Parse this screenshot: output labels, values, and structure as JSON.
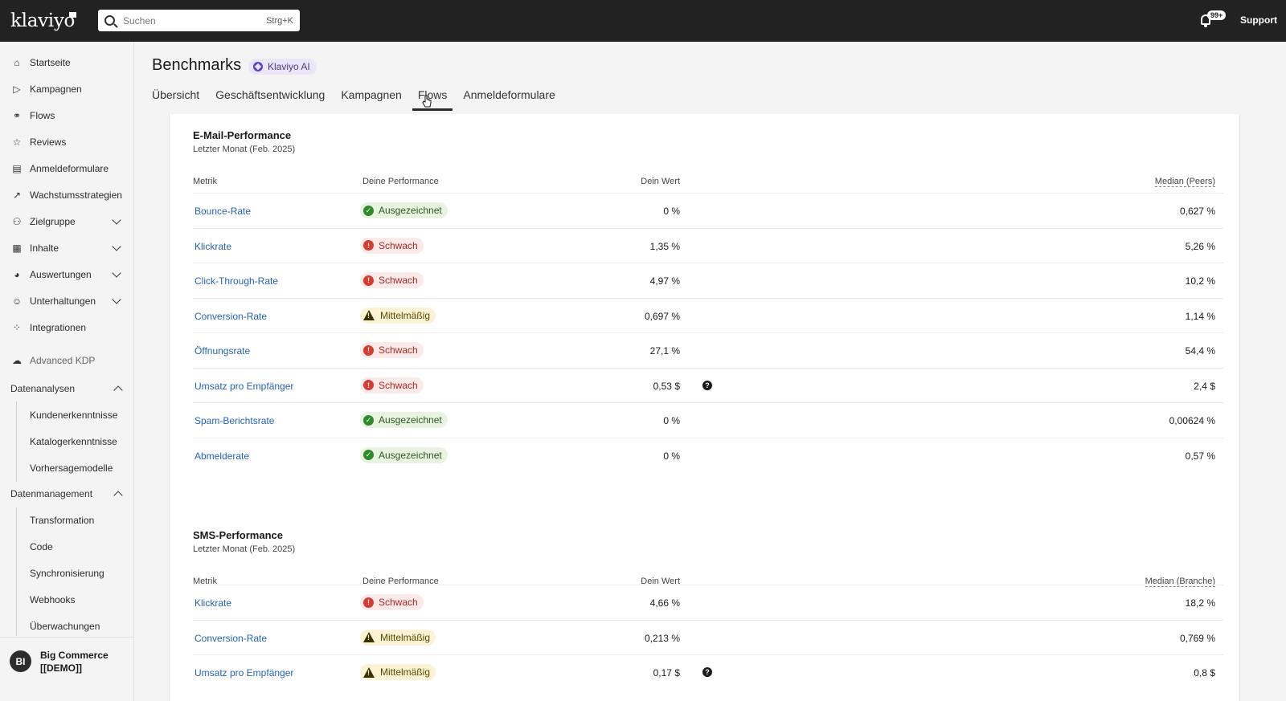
{
  "topbar": {
    "logo": "klaviyo",
    "search_placeholder": "Suchen",
    "search_shortcut": "Strg+K",
    "notifications_count": "99+",
    "support_label": "Support"
  },
  "sidebar": {
    "items": [
      {
        "label": "Startseite",
        "icon": "home-icon"
      },
      {
        "label": "Kampagnen",
        "icon": "send-icon"
      },
      {
        "label": "Flows",
        "icon": "flow-icon"
      },
      {
        "label": "Reviews",
        "icon": "star-icon"
      },
      {
        "label": "Anmeldeformulare",
        "icon": "form-icon"
      },
      {
        "label": "Wachstumsstrategien",
        "icon": "trend-icon"
      },
      {
        "label": "Zielgruppe",
        "icon": "people-icon"
      },
      {
        "label": "Inhalte",
        "icon": "content-icon"
      },
      {
        "label": "Auswertungen",
        "icon": "pie-chart-icon"
      },
      {
        "label": "Unterhaltungen",
        "icon": "chat-icon"
      },
      {
        "label": "Integrationen",
        "icon": "grid-icon"
      },
      {
        "label": "Advanced KDP",
        "icon": "cloud-icon"
      }
    ],
    "datenanalysen": {
      "label": "Datenanalysen",
      "items": [
        "Kundenerkenntnisse",
        "Katalogerkenntnisse",
        "Vorhersagemodelle"
      ]
    },
    "datenmanagement": {
      "label": "Datenmanagement",
      "items": [
        "Transformation",
        "Code",
        "Synchronisierung",
        "Webhooks",
        "Überwachungen"
      ]
    },
    "account": {
      "initials": "BI",
      "name": "Big Commerce [[DEMO]]"
    }
  },
  "header": {
    "title": "Benchmarks",
    "ai_badge": "Klaviyo AI",
    "tabs": [
      "Übersicht",
      "Geschäftsentwicklung",
      "Kampagnen",
      "Flows",
      "Anmeldeformulare"
    ],
    "active_tab": "Flows"
  },
  "email": {
    "title": "E-Mail-Performance",
    "subtitle": "Letzter Monat (Feb. 2025)",
    "columns": {
      "metric": "Metrik",
      "performance": "Deine Performance",
      "value": "Dein Wert",
      "median": "Median (Peers)"
    },
    "rows": [
      {
        "metric": "Bounce-Rate",
        "status": "Ausgezeichnet",
        "level": "good",
        "value": "0 %",
        "median": "0,627 %",
        "info": false
      },
      {
        "metric": "Klickrate",
        "status": "Schwach",
        "level": "bad",
        "value": "1,35 %",
        "median": "5,26 %",
        "info": false
      },
      {
        "metric": "Click-Through-Rate",
        "status": "Schwach",
        "level": "bad",
        "value": "4,97 %",
        "median": "10,2 %",
        "info": false
      },
      {
        "metric": "Conversion-Rate",
        "status": "Mittelmäßig",
        "level": "mid",
        "value": "0,697 %",
        "median": "1,14 %",
        "info": false
      },
      {
        "metric": "Öffnungsrate",
        "status": "Schwach",
        "level": "bad",
        "value": "27,1 %",
        "median": "54,4 %",
        "info": false
      },
      {
        "metric": "Umsatz pro Empfänger",
        "status": "Schwach",
        "level": "bad",
        "value": "0,53 $",
        "median": "2,4 $",
        "info": true
      },
      {
        "metric": "Spam-Berichtsrate",
        "status": "Ausgezeichnet",
        "level": "good",
        "value": "0 %",
        "median": "0,00624 %",
        "info": false
      },
      {
        "metric": "Abmelderate",
        "status": "Ausgezeichnet",
        "level": "good",
        "value": "0 %",
        "median": "0,57 %",
        "info": false
      }
    ]
  },
  "sms": {
    "title": "SMS-Performance",
    "subtitle": "Letzter Monat (Feb. 2025)",
    "columns": {
      "metric": "Metrik",
      "performance": "Deine Performance",
      "value": "Dein Wert",
      "median": "Median (Branche)"
    },
    "rows": [
      {
        "metric": "Klickrate",
        "status": "Schwach",
        "level": "bad",
        "value": "4,66 %",
        "median": "18,2 %",
        "info": false
      },
      {
        "metric": "Conversion-Rate",
        "status": "Mittelmäßig",
        "level": "mid",
        "value": "0,213 %",
        "median": "0,769 %",
        "info": false
      },
      {
        "metric": "Umsatz pro Empfänger",
        "status": "Mittelmäßig",
        "level": "mid",
        "value": "0,17 $",
        "median": "0,8 $",
        "info": true
      }
    ]
  }
}
